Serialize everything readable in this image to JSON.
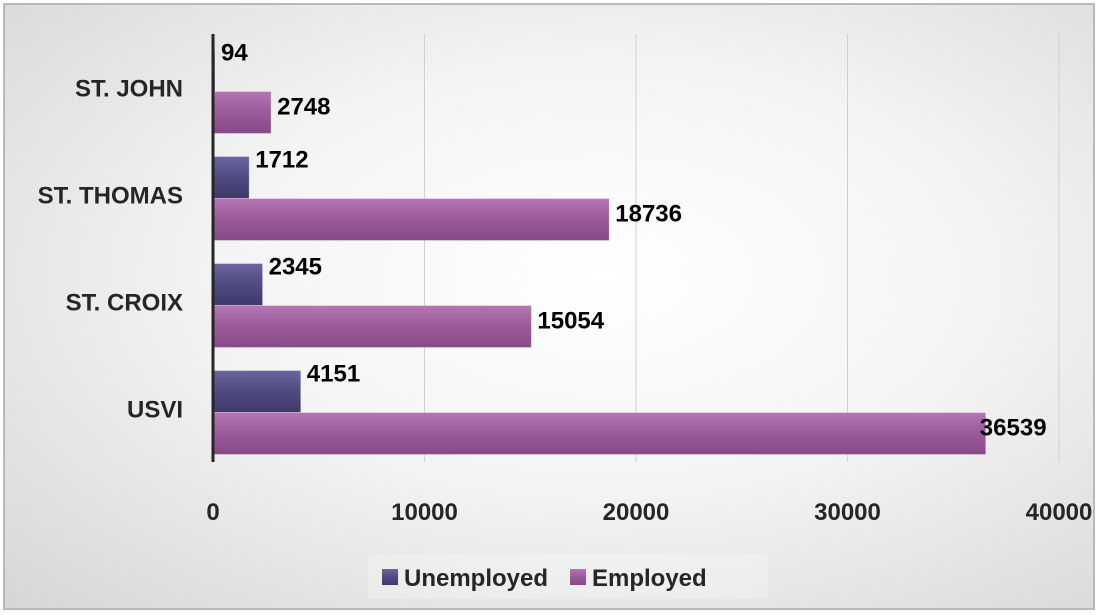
{
  "chart_data": {
    "type": "bar",
    "orientation": "horizontal",
    "categories": [
      "ST. JOHN",
      "ST. THOMAS",
      "ST. CROIX",
      "USVI"
    ],
    "series": [
      {
        "name": "Unemployed",
        "color": "#4f4a80",
        "values": [
          94,
          1712,
          2345,
          4151
        ]
      },
      {
        "name": "Employed",
        "color": "#9b5a9b",
        "values": [
          2748,
          18736,
          15054,
          36539
        ]
      }
    ],
    "xlim": [
      0,
      40000
    ],
    "x_ticks": [
      "0",
      "10000",
      "20000",
      "30000",
      "40000"
    ],
    "grid": true,
    "legend": "bottom",
    "data_labels": true
  }
}
